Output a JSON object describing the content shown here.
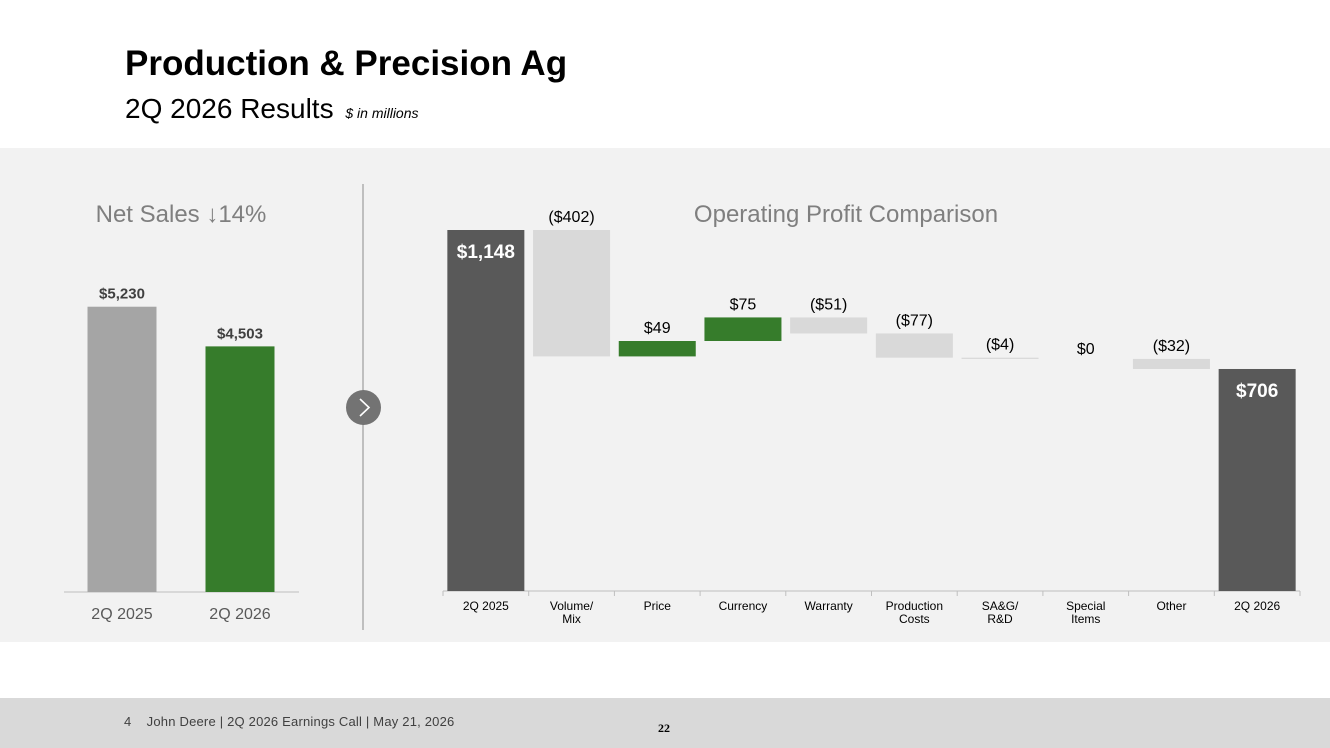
{
  "header": {
    "title": "Production & Precision Ag",
    "subtitle": "2Q 2026 Results",
    "unit_note": "$ in millions"
  },
  "icons": {
    "next": "chevron-right-icon",
    "down_arrow": "↓"
  },
  "footer": {
    "text": "4    John Deere | 2Q 2026 Earnings Call | May 21, 2026",
    "page_number": "22"
  },
  "chart_data": [
    {
      "type": "bar",
      "title": "Net Sales ↓14%",
      "categories": [
        "2Q 2025",
        "2Q 2026"
      ],
      "values": [
        5230,
        4503
      ],
      "data_labels": [
        "$5,230",
        "$4,503"
      ],
      "colors": [
        "#a5a5a5",
        "#367c2b"
      ],
      "ylim": [
        0,
        6050
      ],
      "grid": false
    },
    {
      "type": "bar",
      "subtype": "waterfall",
      "title": "Operating Profit Comparison",
      "categories": [
        "2Q 2025",
        "Volume/\nMix",
        "Price",
        "Currency",
        "Warranty",
        "Production\nCosts",
        "SA&G/\nR&D",
        "Special\nItems",
        "Other",
        "2Q 2026"
      ],
      "values": [
        1148,
        -402,
        49,
        75,
        -51,
        -77,
        -4,
        0,
        -32,
        706
      ],
      "kinds": [
        "total",
        "delta",
        "delta",
        "delta",
        "delta",
        "delta",
        "delta",
        "delta",
        "delta",
        "total"
      ],
      "data_labels": [
        "$1,148",
        "($402)",
        "$49",
        "$75",
        "($51)",
        "($77)",
        "($4)",
        "$0",
        "($32)",
        "$706"
      ],
      "colors": {
        "total": "#595959",
        "increase": "#367c2b",
        "decrease": "#d9d9d9"
      },
      "ylim": [
        0,
        1148
      ],
      "grid": false
    }
  ]
}
